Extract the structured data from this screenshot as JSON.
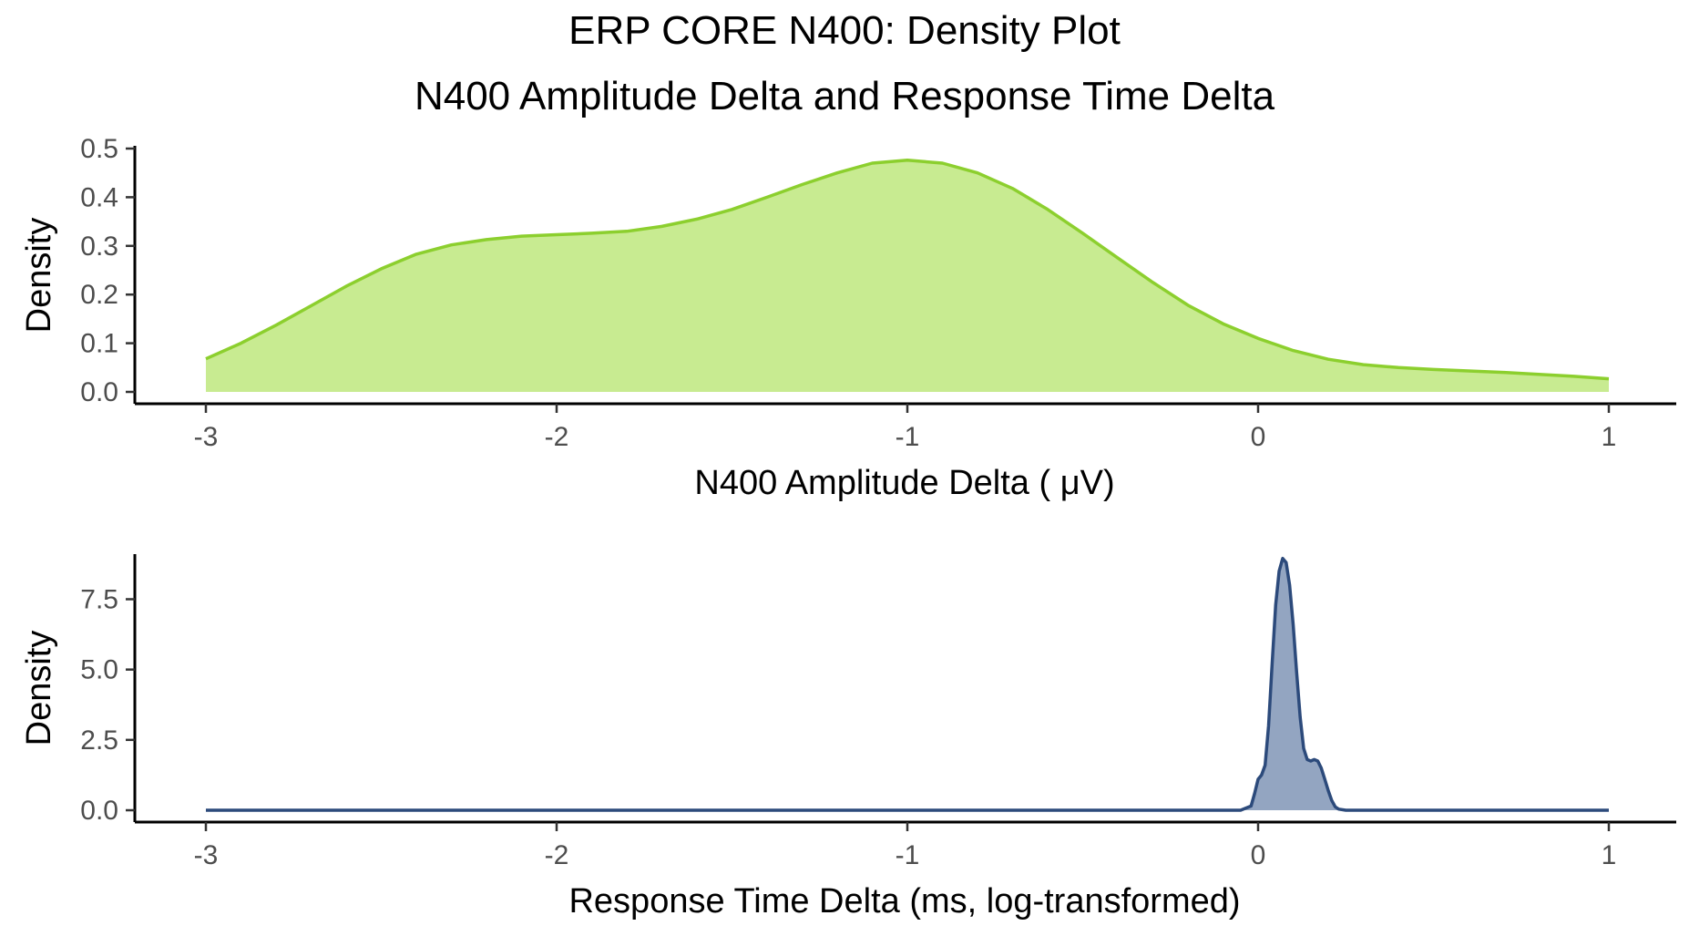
{
  "title": "ERP CORE N400: Density Plot",
  "subtitle": "N400 Amplitude Delta and Response Time Delta",
  "chart_data": [
    {
      "type": "area",
      "xlabel": "N400 Amplitude Delta ( μV)",
      "ylabel": "Density",
      "xlim": [
        -3,
        1
      ],
      "ylim": [
        0,
        0.5
      ],
      "x_ticks": [
        -3,
        -2,
        -1,
        0,
        1
      ],
      "x_tick_labels": [
        "-3",
        "-2",
        "-1",
        "0",
        "1"
      ],
      "y_ticks": [
        0,
        0.1,
        0.2,
        0.3,
        0.4,
        0.5
      ],
      "y_tick_labels": [
        "0.0",
        "0.1",
        "0.2",
        "0.3",
        "0.4",
        "0.5"
      ],
      "fill_color": "#c8eb91",
      "line_color": "#8ccf2e",
      "grid": false,
      "x": [
        -3.0,
        -2.9,
        -2.8,
        -2.7,
        -2.6,
        -2.5,
        -2.4,
        -2.3,
        -2.2,
        -2.1,
        -2.0,
        -1.9,
        -1.8,
        -1.7,
        -1.6,
        -1.5,
        -1.4,
        -1.3,
        -1.2,
        -1.1,
        -1.0,
        -0.9,
        -0.8,
        -0.7,
        -0.6,
        -0.5,
        -0.4,
        -0.3,
        -0.2,
        -0.1,
        0.0,
        0.1,
        0.2,
        0.3,
        0.4,
        0.5,
        0.6,
        0.7,
        0.8,
        0.9,
        1.0
      ],
      "y": [
        0.068,
        0.1,
        0.137,
        0.177,
        0.217,
        0.253,
        0.283,
        0.302,
        0.313,
        0.32,
        0.323,
        0.326,
        0.33,
        0.34,
        0.355,
        0.375,
        0.4,
        0.426,
        0.45,
        0.47,
        0.476,
        0.47,
        0.45,
        0.418,
        0.375,
        0.326,
        0.275,
        0.225,
        0.178,
        0.14,
        0.11,
        0.085,
        0.067,
        0.056,
        0.05,
        0.046,
        0.043,
        0.04,
        0.036,
        0.032,
        0.027
      ]
    },
    {
      "type": "area",
      "xlabel": "Response Time Delta (ms, log-transformed)",
      "ylabel": "Density",
      "xlim": [
        -3,
        1
      ],
      "ylim": [
        0,
        9.2
      ],
      "x_ticks": [
        -3,
        -2,
        -1,
        0,
        1
      ],
      "x_tick_labels": [
        "-3",
        "-2",
        "-1",
        "0",
        "1"
      ],
      "y_ticks": [
        0,
        2.5,
        5,
        7.5
      ],
      "y_tick_labels": [
        "0.0",
        "2.5",
        "5.0",
        "7.5"
      ],
      "fill_color": "#93a5c1",
      "line_color": "#2c4a7b",
      "grid": false,
      "x": [
        -3.0,
        -1.0,
        -0.05,
        -0.02,
        -0.01,
        0.0,
        0.01,
        0.02,
        0.03,
        0.04,
        0.05,
        0.06,
        0.07,
        0.08,
        0.09,
        0.1,
        0.11,
        0.12,
        0.13,
        0.14,
        0.15,
        0.16,
        0.17,
        0.18,
        0.19,
        0.2,
        0.21,
        0.22,
        0.23,
        0.25,
        0.28,
        0.5,
        1.0
      ],
      "y": [
        0.0,
        0.0,
        0.0,
        0.15,
        0.6,
        1.1,
        1.25,
        1.6,
        3.0,
        5.2,
        7.3,
        8.5,
        8.95,
        8.8,
        8.0,
        6.6,
        4.9,
        3.3,
        2.2,
        1.8,
        1.75,
        1.8,
        1.75,
        1.5,
        1.1,
        0.7,
        0.35,
        0.12,
        0.04,
        0.0,
        0.0,
        0.0,
        0.0
      ]
    }
  ]
}
